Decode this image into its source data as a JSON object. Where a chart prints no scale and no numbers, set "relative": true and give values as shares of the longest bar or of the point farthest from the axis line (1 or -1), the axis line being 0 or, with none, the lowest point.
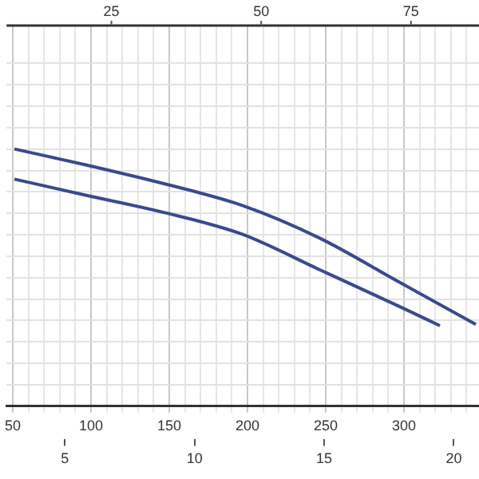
{
  "chart_data": {
    "type": "line",
    "relative": true,
    "xlim": [
      46,
      348
    ],
    "xticks": [
      50,
      {
        "value": 60,
        "label": null
      },
      {
        "value": 70,
        "label": null
      },
      {
        "value": 80,
        "label": null
      },
      {
        "value": 90,
        "label": null
      },
      100,
      {
        "value": 110,
        "label": null
      },
      {
        "value": 120,
        "label": null
      },
      {
        "value": 130,
        "label": null
      },
      {
        "value": 140,
        "label": null
      },
      150,
      {
        "value": 160,
        "label": null
      },
      {
        "value": 170,
        "label": null
      },
      {
        "value": 180,
        "label": null
      },
      {
        "value": 190,
        "label": null
      },
      200,
      {
        "value": 210,
        "label": null
      },
      {
        "value": 220,
        "label": null
      },
      {
        "value": 230,
        "label": null
      },
      {
        "value": 240,
        "label": null
      },
      250,
      {
        "value": 260,
        "label": null
      },
      {
        "value": 270,
        "label": null
      },
      {
        "value": 280,
        "label": null
      },
      {
        "value": 290,
        "label": null
      },
      300,
      {
        "value": 310,
        "label": null
      },
      {
        "value": 320,
        "label": null
      },
      {
        "value": 330,
        "label": null
      },
      {
        "value": 340,
        "label": null
      }
    ],
    "x2lim": [
      2.75,
      20.97
    ],
    "x2ticks": [
      5,
      10,
      15,
      20
    ],
    "annotations": [
      "25",
      "50",
      "75"
    ],
    "grid": true,
    "marker": "none",
    "line_style": "solid",
    "series": [
      {
        "color": "#3a4a8c",
        "x": [
          51,
          96,
          146,
          196,
          246,
          296,
          346
        ],
        "values": [
          1,
          0.939,
          0.866,
          0.782,
          0.654,
          0.486,
          0.318
        ]
      },
      {
        "color": "#3a4a8c",
        "x": [
          51,
          96,
          146,
          196,
          246,
          296,
          323
        ],
        "values": [
          0.883,
          0.821,
          0.754,
          0.67,
          0.531,
          0.391,
          0.313
        ]
      }
    ]
  }
}
